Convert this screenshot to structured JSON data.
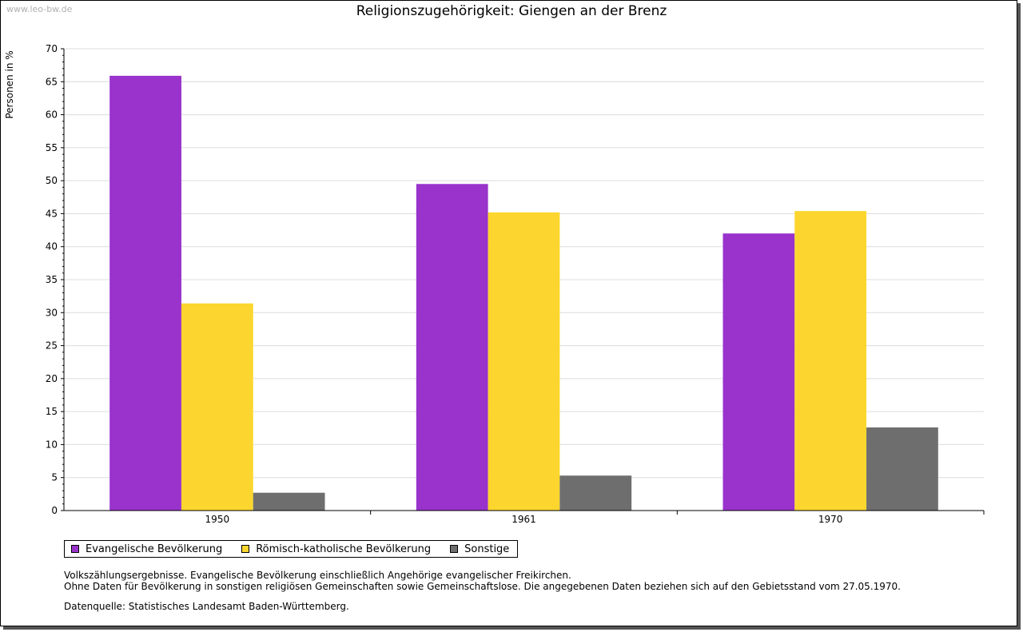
{
  "watermark": "www.leo-bw.de",
  "notes": {
    "line1": "Volkszählungsergebnisse. Evangelische Bevölkerung einschließlich Angehörige evangelischer Freikirchen.",
    "line2": "Ohne Daten für Bevölkerung in sonstigen religiösen Gemeinschaften sowie Gemeinschaftslose. Die angegebenen Daten beziehen sich auf den Gebietsstand vom 27.05.1970.",
    "source": "Datenquelle: Statistisches Landesamt Baden-Württemberg."
  },
  "chart_data": {
    "type": "bar",
    "title": "Religionszugehörigkeit: Giengen an der Brenz",
    "ylabel": "Personen in %",
    "xlabel": "",
    "categories": [
      "1950",
      "1961",
      "1970"
    ],
    "ylim": [
      0,
      70
    ],
    "yticks": [
      0,
      5,
      10,
      15,
      20,
      25,
      30,
      35,
      40,
      45,
      50,
      55,
      60,
      65,
      70
    ],
    "grid": true,
    "legend_position": "bottom-left",
    "series": [
      {
        "name": "Evangelische Bevölkerung",
        "color": "#9933cc",
        "values": [
          65.9,
          49.5,
          42.0
        ]
      },
      {
        "name": "Römisch-katholische Bevölkerung",
        "color": "#fcd62e",
        "values": [
          31.4,
          45.2,
          45.4
        ]
      },
      {
        "name": "Sonstige",
        "color": "#6e6e6e",
        "values": [
          2.7,
          5.3,
          12.6
        ]
      }
    ]
  }
}
